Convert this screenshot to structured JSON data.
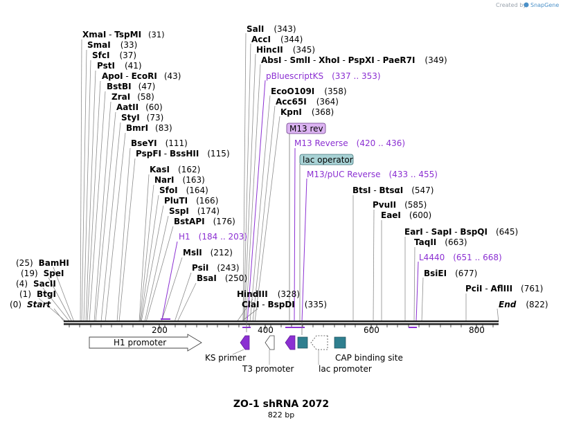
{
  "credit": {
    "prefix": "Created by",
    "brand": "SnapGene"
  },
  "title": "ZO-1 shRNA 2072",
  "length_label": "822 bp",
  "ticks": [
    "200",
    "400",
    "600",
    "800"
  ],
  "enzymes_left": [
    {
      "name": "XmaI",
      "name2": "TspMI",
      "pos": "(31)"
    },
    {
      "name": "SmaI",
      "pos": "(33)"
    },
    {
      "name": "SfcI",
      "pos": "(37)"
    },
    {
      "name": "PstI",
      "pos": "(41)"
    },
    {
      "name": "ApoI",
      "name2": "EcoRI",
      "pos": "(43)"
    },
    {
      "name": "BstBI",
      "pos": "(47)"
    },
    {
      "name": "ZraI",
      "pos": "(58)"
    },
    {
      "name": "AatII",
      "pos": "(60)"
    },
    {
      "name": "StyI",
      "pos": "(73)"
    },
    {
      "name": "BmrI",
      "pos": "(83)"
    },
    {
      "name": "BseYI",
      "pos": "(111)"
    },
    {
      "name": "PspFI",
      "name2": "BssHII",
      "pos": "(115)"
    },
    {
      "name": "KasI",
      "pos": "(162)"
    },
    {
      "name": "NarI",
      "pos": "(163)"
    },
    {
      "name": "SfoI",
      "pos": "(164)"
    },
    {
      "name": "PluTI",
      "pos": "(166)"
    },
    {
      "name": "SspI",
      "pos": "(174)"
    },
    {
      "name": "BstAPI",
      "pos": "(176)"
    },
    {
      "name": "MslI",
      "pos": "(212)"
    },
    {
      "name": "PsiI",
      "pos": "(243)"
    },
    {
      "name": "BsaI",
      "pos": "(250)"
    }
  ],
  "enzymes_low": [
    {
      "name": "BamHI",
      "pos": "(25)"
    },
    {
      "name": "SpeI",
      "pos": "(19)"
    },
    {
      "name": "SacII",
      "pos": "(4)"
    },
    {
      "name": "BtgI",
      "pos": "(1)"
    },
    {
      "name": "Start",
      "pos": "(0)"
    }
  ],
  "enzymes_mid": [
    {
      "name": "SalI",
      "pos": "(343)"
    },
    {
      "name": "AccI",
      "pos": "(344)"
    },
    {
      "name": "HincII",
      "pos": "(345)"
    },
    {
      "name": "AbsI",
      "name2": "SmlI",
      "name3": "XhoI",
      "name4": "PspXI",
      "name5": "PaeR7I",
      "pos": "(349)"
    },
    {
      "name": "EcoO109I",
      "pos": "(358)"
    },
    {
      "name": "Acc65I",
      "pos": "(364)"
    },
    {
      "name": "KpnI",
      "pos": "(368)"
    },
    {
      "name": "HindIII",
      "pos": "(328)"
    },
    {
      "name": "ClaI",
      "name2": "BspDI",
      "pos": "(335)"
    }
  ],
  "enzymes_right": [
    {
      "name": "BtsI",
      "name2": "BtsαI",
      "pos": "(547)"
    },
    {
      "name": "PvuII",
      "pos": "(585)"
    },
    {
      "name": "EaeI",
      "pos": "(600)"
    },
    {
      "name": "EarI",
      "name2": "SapI",
      "name3": "BspQI",
      "pos": "(645)"
    },
    {
      "name": "TaqII",
      "pos": "(663)"
    },
    {
      "name": "BsiEI",
      "pos": "(677)"
    },
    {
      "name": "PciI",
      "name2": "AflIII",
      "pos": "(761)"
    },
    {
      "name": "End",
      "pos": "(822)"
    }
  ],
  "features": [
    {
      "name": "pBluescriptKS",
      "range": "(337 .. 353)"
    },
    {
      "name": "M13 rev"
    },
    {
      "name": "M13 Reverse",
      "range": "(420 .. 436)"
    },
    {
      "name": "lac operator"
    },
    {
      "name": "M13/pUC Reverse",
      "range": "(433 .. 455)"
    },
    {
      "name": "H1",
      "range": "(184 .. 203)"
    },
    {
      "name": "L4440",
      "range": "(651 .. 668)"
    }
  ],
  "track_labels": {
    "h1_promoter": "H1 promoter",
    "ks_primer": "KS primer",
    "t3_promoter": "T3 promoter",
    "cap_site": "CAP binding site",
    "lac_promoter": "lac promoter"
  },
  "colors": {
    "primer": "#8b2fd2",
    "operator_fill": "#a9d3d6",
    "mrev_fill": "#dcb4f2",
    "cap_fill": "#2f7f8f"
  }
}
